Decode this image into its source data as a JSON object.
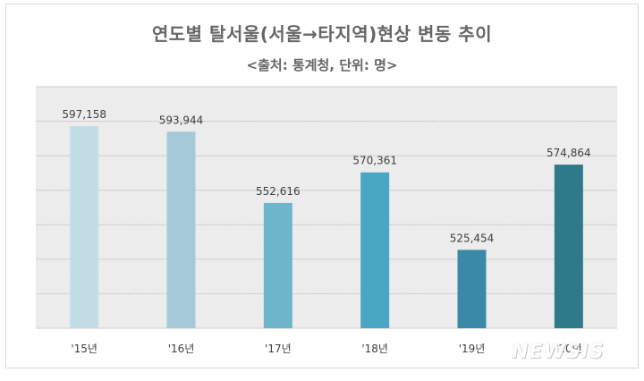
{
  "chart_data": {
    "type": "bar",
    "title": "연도별 탈서울(서울→타지역)현상 변동 추이",
    "subtitle": "<출처:  통계청, 단위: 명>",
    "categories": [
      "'15년",
      "'16년",
      "'17년",
      "'18년",
      "'19년",
      "'20년"
    ],
    "values": [
      597158,
      593944,
      552616,
      570361,
      525454,
      574864
    ],
    "value_labels": [
      "597,158",
      "593,944",
      "552,616",
      "570,361",
      "525,454",
      "574,864"
    ],
    "colors": [
      "#c3dde6",
      "#a4c9d8",
      "#6db6cc",
      "#4aa7c3",
      "#3a8aa7",
      "#2e7a8a"
    ],
    "ylim": [
      480000,
      620000
    ],
    "grid": true,
    "legend": "none"
  },
  "watermark": "NEWSIS"
}
